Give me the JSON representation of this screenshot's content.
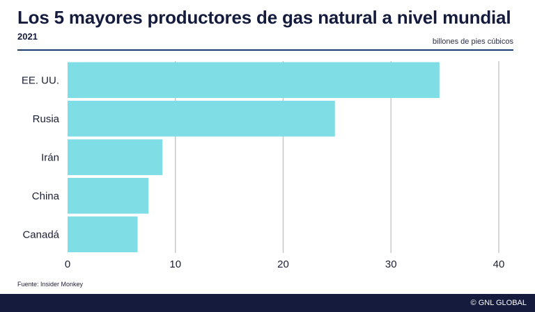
{
  "header": {
    "title": "Los 5 mayores productores de gas natural a nivel mundial",
    "subtitle": "2021",
    "unit": "billones de pies cúbicos"
  },
  "chart_data": {
    "type": "bar",
    "orientation": "horizontal",
    "categories": [
      "EE. UU.",
      "Rusia",
      "Irán",
      "China",
      "Canadá"
    ],
    "values": [
      34.5,
      24.8,
      8.8,
      7.5,
      6.5
    ],
    "xlim": [
      0,
      40
    ],
    "xticks": [
      0,
      10,
      20,
      30,
      40
    ],
    "grid": true,
    "bar_color": "#7fdde6",
    "grid_color": "#c8c8c8"
  },
  "footer": {
    "source": "Fuente: Insider Monkey",
    "copyright": "© GNL GLOBAL"
  },
  "colors": {
    "title": "#141b3d",
    "footer_bg": "#141b3d",
    "rule": "#1f3a6e"
  }
}
